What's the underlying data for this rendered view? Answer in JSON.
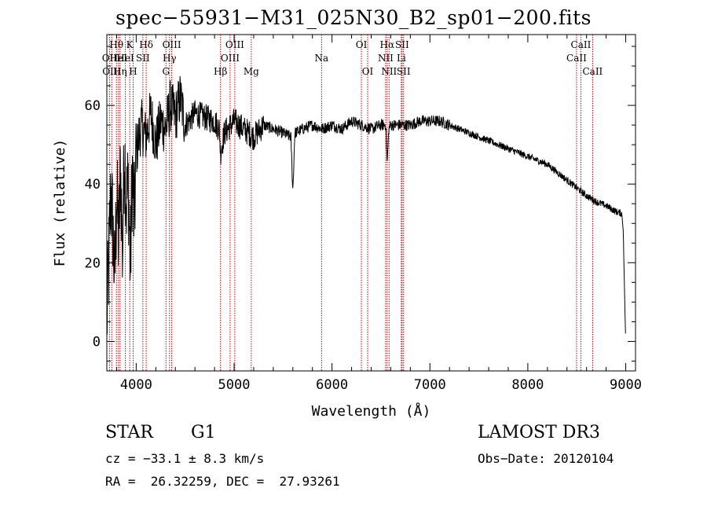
{
  "chart_data": {
    "type": "line",
    "title": "spec−55931−M31_025N30_B2_sp01−200.fits",
    "xlabel": "Wavelength (Å)",
    "ylabel": "Flux (relative)",
    "xlim": [
      3700,
      9100
    ],
    "ylim": [
      -7.5,
      78
    ],
    "xticks": [
      4000,
      5000,
      6000,
      7000,
      8000,
      9000
    ],
    "yticks": [
      0,
      20,
      40,
      60
    ],
    "series": [
      {
        "name": "flux",
        "x": [
          3700,
          3720,
          3740,
          3760,
          3780,
          3800,
          3820,
          3840,
          3860,
          3880,
          3900,
          3920,
          3940,
          3960,
          3980,
          4000,
          4050,
          4100,
          4150,
          4200,
          4250,
          4300,
          4350,
          4400,
          4450,
          4500,
          4600,
          4700,
          4800,
          4850,
          4861,
          4900,
          5000,
          5100,
          5200,
          5300,
          5400,
          5500,
          5580,
          5600,
          5620,
          5700,
          5800,
          5900,
          6000,
          6100,
          6200,
          6300,
          6400,
          6500,
          6550,
          6563,
          6580,
          6600,
          6700,
          6800,
          6900,
          7000,
          7100,
          7200,
          7300,
          7400,
          7500,
          7600,
          7700,
          7800,
          7900,
          8000,
          8100,
          8200,
          8300,
          8400,
          8500,
          8600,
          8700,
          8800,
          8900,
          8960,
          8975,
          8990,
          9000
        ],
        "y": [
          5,
          20,
          38,
          30,
          15,
          38,
          25,
          45,
          22,
          50,
          35,
          40,
          18,
          44,
          30,
          48,
          55,
          52,
          58,
          50,
          56,
          54,
          60,
          57,
          62,
          55,
          58,
          57,
          56,
          54,
          48,
          53,
          56,
          54,
          52,
          55,
          54,
          53,
          52,
          38,
          53,
          54,
          55,
          54,
          55,
          54,
          56,
          55,
          54,
          55,
          55,
          45,
          54,
          55,
          55,
          55,
          56,
          56,
          56,
          55,
          54,
          53,
          52,
          51,
          50,
          49,
          48,
          47,
          46,
          45,
          43,
          41,
          39,
          37,
          35.5,
          34.5,
          33,
          32.5,
          28,
          10,
          0
        ]
      }
    ],
    "lines": [
      {
        "w": 3727,
        "label": "OII",
        "row": 1
      },
      {
        "w": 3750,
        "label": "OIII",
        "row": 2
      },
      {
        "w": 3798,
        "label": "Hθ",
        "row": 0
      },
      {
        "w": 3819,
        "label": "HeI",
        "row": 1
      },
      {
        "w": 3835,
        "label": "Hη",
        "row": 2
      },
      {
        "w": 3889,
        "label": "HeI",
        "row": 1
      },
      {
        "w": 3934,
        "label": "K",
        "row": 0
      },
      {
        "w": 3969,
        "label": "H",
        "row": 2
      },
      {
        "w": 4068,
        "label": "SII",
        "row": 1
      },
      {
        "w": 4102,
        "label": "Hδ",
        "row": 0
      },
      {
        "w": 4304,
        "label": "G",
        "row": 2
      },
      {
        "w": 4340,
        "label": "Hγ",
        "row": 1
      },
      {
        "w": 4363,
        "label": "OIII",
        "row": 0
      },
      {
        "w": 4861,
        "label": "Hβ",
        "row": 2
      },
      {
        "w": 4959,
        "label": "OIII",
        "row": 1
      },
      {
        "w": 5007,
        "label": "OIII",
        "row": 0
      },
      {
        "w": 5175,
        "label": "Mg",
        "row": 2
      },
      {
        "w": 5893,
        "label": "Na",
        "row": 1
      },
      {
        "w": 6300,
        "label": "OI",
        "row": 0
      },
      {
        "w": 6364,
        "label": "OI",
        "row": 2
      },
      {
        "w": 6548,
        "label": "NII",
        "row": 1
      },
      {
        "w": 6563,
        "label": "Hα",
        "row": 0
      },
      {
        "w": 6583,
        "label": "NII",
        "row": 2
      },
      {
        "w": 6708,
        "label": "Li",
        "row": 1
      },
      {
        "w": 6716,
        "label": "SII",
        "row": 0
      },
      {
        "w": 6731,
        "label": "SII",
        "row": 2
      },
      {
        "w": 8498,
        "label": "CaII",
        "row": 1
      },
      {
        "w": 8542,
        "label": "CaII",
        "row": 0
      },
      {
        "w": 8662,
        "label": "CaII",
        "row": 2
      }
    ],
    "colors": {
      "axis": "#000000",
      "line": "#000000",
      "marker": "#cc0000"
    }
  },
  "info": {
    "class": "STAR",
    "subclass": "G1",
    "survey": "LAMOST DR3",
    "cz": "cz = −33.1 ± 8.3 km/s",
    "obs_date": "Obs−Date: 20120104",
    "radec": "RA =  26.32259, DEC =  27.93261"
  }
}
